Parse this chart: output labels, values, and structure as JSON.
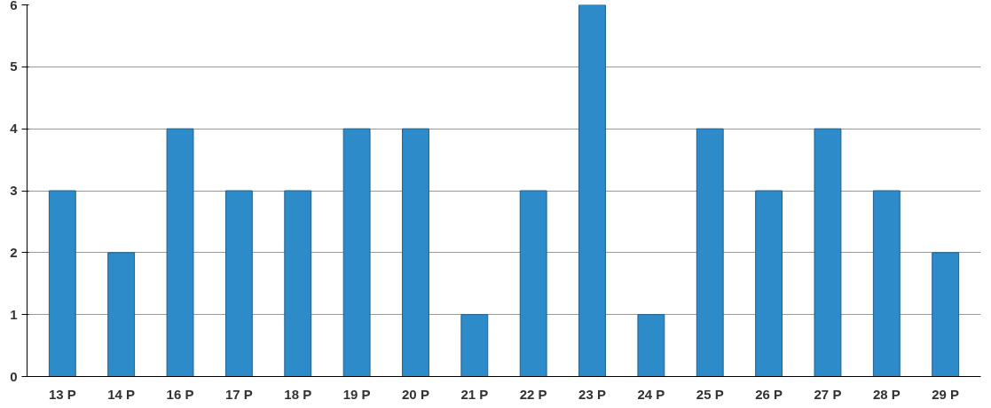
{
  "chart_data": {
    "type": "bar",
    "categories": [
      "13 P",
      "14 P",
      "16 P",
      "17 P",
      "18 P",
      "19 P",
      "20 P",
      "21 P",
      "22 P",
      "23 P",
      "24 P",
      "25 P",
      "26 P",
      "27 P",
      "28 P",
      "29 P"
    ],
    "values": [
      3,
      2,
      4,
      3,
      3,
      4,
      4,
      1,
      3,
      6,
      1,
      4,
      3,
      4,
      3,
      2
    ],
    "color": "#2e8bc9",
    "ylim": [
      0,
      6
    ],
    "yticks": [
      0,
      1,
      2,
      3,
      4,
      5,
      6
    ],
    "grid": "y"
  }
}
